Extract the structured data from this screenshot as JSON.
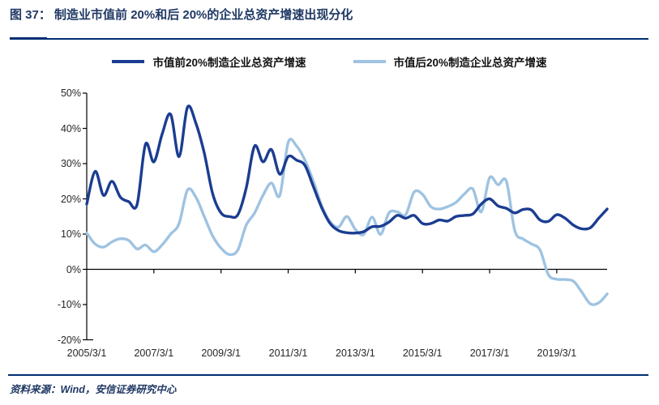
{
  "header": {
    "title": "图 37：  制造业市值前 20%和后 20%的企业总资产增速出现分化"
  },
  "footer": {
    "source": "资料来源：Wind，安信证券研究中心"
  },
  "colors": {
    "title_navy": "#1f3864",
    "rule_navy": "#002d72",
    "axis_black": "#000000",
    "label_gray": "#262626",
    "series_top20": "#1b3d91",
    "series_bottom20": "#9fc3e1"
  },
  "chart_data": {
    "type": "line",
    "title": "制造业市值前20%和后20%的企业总资产增速出现分化",
    "xlabel": "",
    "ylabel": "",
    "ylim": [
      -20,
      50
    ],
    "ytick_step": 10,
    "grid": false,
    "zero_line": true,
    "legend_position": "top-center",
    "ytick_labels": [
      "50%",
      "40%",
      "30%",
      "20%",
      "10%",
      "0%",
      "-10%",
      "-20%"
    ],
    "xtick_labels": [
      "2005/3/1",
      "2007/3/1",
      "2009/3/1",
      "2011/3/1",
      "2013/3/1",
      "2015/3/1",
      "2017/3/1",
      "2019/3/1"
    ],
    "x": [
      "2005/3/1",
      "2005/6/1",
      "2005/9/1",
      "2005/12/1",
      "2006/3/1",
      "2006/6/1",
      "2006/9/1",
      "2006/12/1",
      "2007/3/1",
      "2007/6/1",
      "2007/9/1",
      "2007/12/1",
      "2008/3/1",
      "2008/6/1",
      "2008/9/1",
      "2008/12/1",
      "2009/3/1",
      "2009/6/1",
      "2009/9/1",
      "2009/12/1",
      "2010/3/1",
      "2010/6/1",
      "2010/9/1",
      "2010/12/1",
      "2011/3/1",
      "2011/6/1",
      "2011/9/1",
      "2011/12/1",
      "2012/3/1",
      "2012/6/1",
      "2012/9/1",
      "2012/12/1",
      "2013/3/1",
      "2013/6/1",
      "2013/9/1",
      "2013/12/1",
      "2014/3/1",
      "2014/6/1",
      "2014/9/1",
      "2014/12/1",
      "2015/3/1",
      "2015/6/1",
      "2015/9/1",
      "2015/12/1",
      "2016/3/1",
      "2016/6/1",
      "2016/9/1",
      "2016/12/1",
      "2017/3/1",
      "2017/6/1",
      "2017/9/1",
      "2017/12/1",
      "2018/3/1",
      "2018/6/1",
      "2018/9/1",
      "2018/12/1",
      "2019/3/1",
      "2019/6/1",
      "2019/9/1",
      "2019/12/1",
      "2020/3/1",
      "2020/6/1",
      "2020/9/1"
    ],
    "series": [
      {
        "name": "市值前20%制造企业总资产增速",
        "color": "#1b3d91",
        "values": [
          18.5,
          27.8,
          21,
          25,
          20.5,
          19.2,
          18.4,
          35.5,
          30.5,
          38.5,
          44,
          32,
          46,
          41.5,
          33,
          21.5,
          16,
          15,
          15.5,
          23,
          35,
          30.5,
          34,
          27,
          32,
          31,
          29.5,
          23.5,
          17.5,
          13,
          11,
          10.4,
          10.3,
          10.7,
          12.1,
          12.2,
          13.4,
          15.3,
          14.5,
          15.3,
          13,
          13,
          14,
          13.7,
          15,
          15.3,
          15.7,
          18.5,
          20,
          18,
          17.3,
          16,
          17,
          16.8,
          14,
          13.6,
          15.5,
          14.5,
          12.5,
          11.5,
          11.8,
          14.5,
          17.1
        ]
      },
      {
        "name": "市值后20%制造企业总资产增速",
        "color": "#9fc3e1",
        "values": [
          10.3,
          7.2,
          6.3,
          7.8,
          8.7,
          8.2,
          5.8,
          6.9,
          5,
          7,
          10,
          13,
          22.5,
          20.5,
          15,
          9.5,
          6,
          4.2,
          5.5,
          12.5,
          16,
          21,
          24.5,
          21,
          36,
          35,
          31,
          25,
          18,
          13.5,
          12,
          15,
          11.3,
          9.9,
          14.8,
          9.9,
          16,
          16.3,
          15.5,
          21.9,
          21.3,
          17.8,
          17.1,
          17.8,
          19,
          21.4,
          22.8,
          16.3,
          26,
          24,
          25,
          11,
          8.6,
          7.2,
          5.5,
          -1.5,
          -2.8,
          -2.9,
          -3.4,
          -6.5,
          -9.8,
          -9.5,
          -7
        ]
      }
    ]
  }
}
